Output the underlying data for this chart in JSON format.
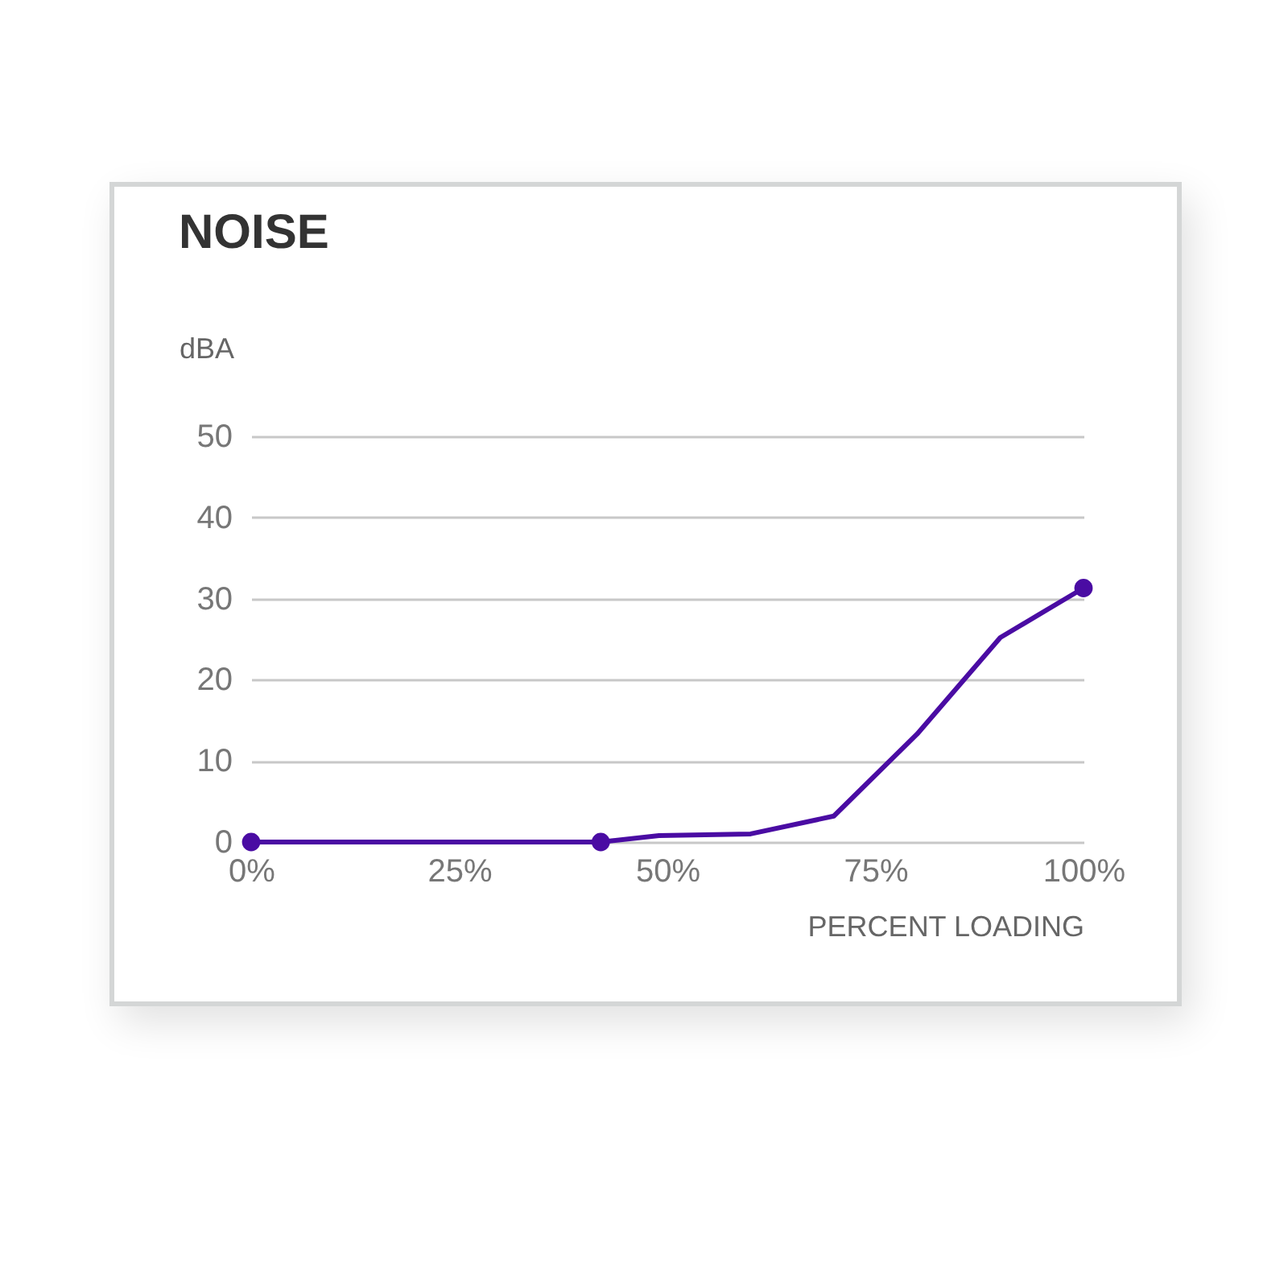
{
  "chart_data": {
    "type": "line",
    "title": "NOISE",
    "xlabel": "PERCENT LOADING",
    "ylabel": "dBA",
    "xlim": [
      0,
      100
    ],
    "xticks": [
      {
        "value": 0,
        "label": "0%"
      },
      {
        "value": 25,
        "label": "25%"
      },
      {
        "value": 50,
        "label": "50%"
      },
      {
        "value": 75,
        "label": "75%"
      },
      {
        "value": 100,
        "label": "100%"
      }
    ],
    "ylim": [
      0,
      50
    ],
    "yticks": [
      0,
      10,
      20,
      30,
      40,
      50
    ],
    "grid": "y",
    "series": [
      {
        "color": "#4a0ca3",
        "marker": "none",
        "x": [
          0,
          42,
          49,
          60,
          70,
          80,
          90,
          100
        ],
        "values": [
          0,
          0,
          0.8,
          1,
          3.2,
          13.3,
          25.2,
          31.3
        ]
      },
      {
        "type": "scatter",
        "color": "#4a0ca3",
        "marker": "circle",
        "x": [
          0,
          42,
          100
        ],
        "values": [
          0,
          0,
          31.3
        ]
      }
    ]
  }
}
